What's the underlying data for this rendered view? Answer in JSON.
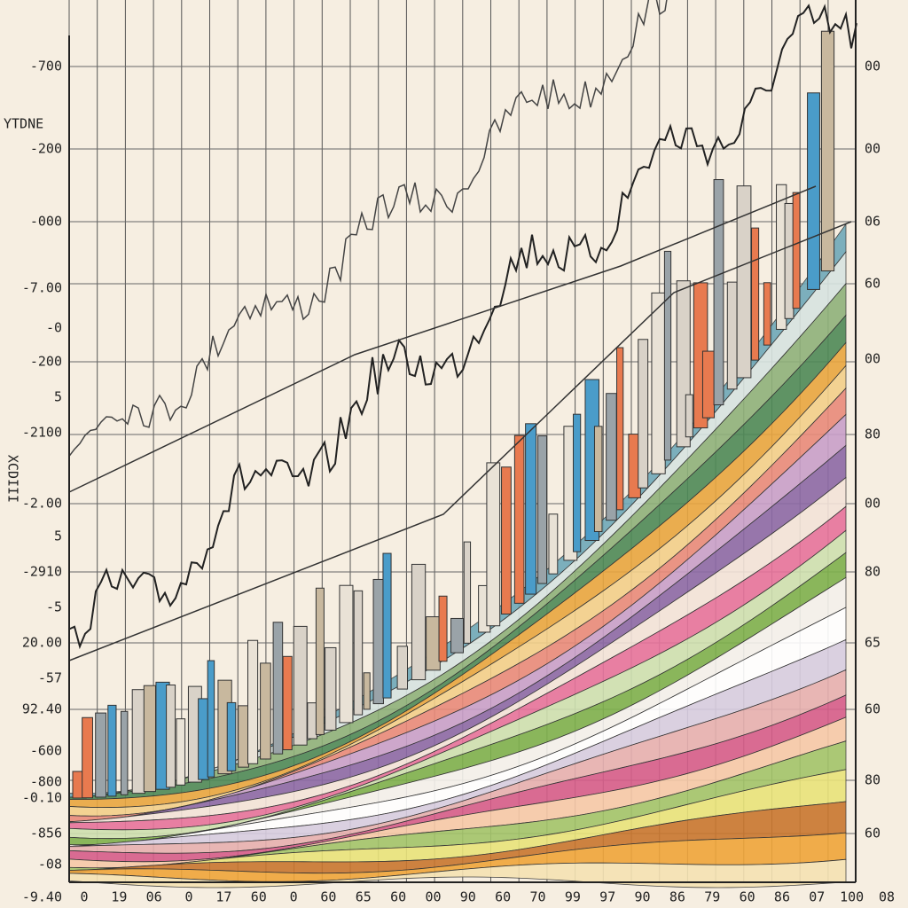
{
  "axis_titles": {
    "top_left": "YTDNE",
    "left": "XCDIII"
  },
  "left_labels": [
    "-700",
    "-200",
    "-000",
    "-7.00",
    "-0",
    "-200",
    "5",
    "-2100",
    "-2.00",
    "5",
    "-2910",
    "-5",
    "20.00",
    "-57",
    "92.40",
    "-600",
    "-800",
    "-0.10",
    "-856",
    "-08",
    "-9.40"
  ],
  "right_labels": [
    "00",
    "00",
    "06",
    "60",
    "00",
    "80",
    "00",
    "80",
    "65",
    "60",
    "80",
    "60"
  ],
  "bottom_labels": [
    "0",
    "19",
    "06",
    "0",
    "17",
    "60",
    "0",
    "60",
    "65",
    "60",
    "00",
    "90",
    "60",
    "70",
    "99",
    "97",
    "90",
    "86",
    "79",
    "60",
    "86",
    "07",
    "100",
    "08"
  ]
}
